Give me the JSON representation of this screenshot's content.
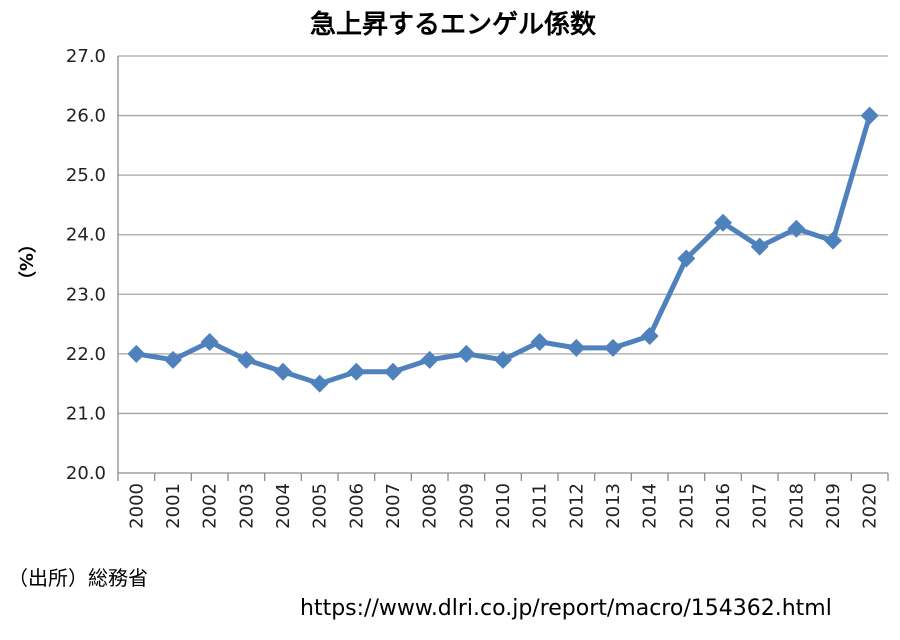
{
  "chart_data": {
    "type": "line",
    "title": "急上昇するエンゲル係数",
    "xlabel": "",
    "ylabel": "（%）",
    "ylim": [
      20.0,
      27.0
    ],
    "yticks": [
      "20.0",
      "21.0",
      "22.0",
      "23.0",
      "24.0",
      "25.0",
      "26.0",
      "27.0"
    ],
    "categories": [
      "2000",
      "2001",
      "2002",
      "2003",
      "2004",
      "2005",
      "2006",
      "2007",
      "2008",
      "2009",
      "2010",
      "2011",
      "2012",
      "2013",
      "2014",
      "2015",
      "2016",
      "2017",
      "2018",
      "2019",
      "2020"
    ],
    "series": [
      {
        "values": [
          22.0,
          21.9,
          22.2,
          21.9,
          21.7,
          21.5,
          21.7,
          21.7,
          21.9,
          22.0,
          21.9,
          22.2,
          22.1,
          22.1,
          22.3,
          23.6,
          24.2,
          23.8,
          24.1,
          23.9,
          26.0
        ]
      }
    ],
    "grid": true,
    "series_color": "#4f81bd"
  },
  "source": "（出所）総務省",
  "url": "https://www.dlri.co.jp/report/macro/154362.html"
}
